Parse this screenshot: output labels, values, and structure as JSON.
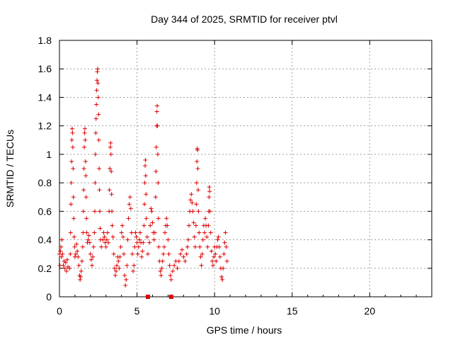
{
  "chart_data": {
    "type": "scatter",
    "title": "Day 344 of 2025, SRMTID for receiver ptvl",
    "xlabel": "GPS time / hours",
    "ylabel": "SRMTID / TECUs",
    "xlim": [
      0,
      24
    ],
    "ylim": [
      0,
      1.8
    ],
    "xticks": [
      0,
      5,
      10,
      15,
      20
    ],
    "xtick_labels": [
      "0",
      "5",
      "10",
      "15",
      "20"
    ],
    "yticks": [
      0,
      0.2,
      0.4,
      0.6,
      0.8,
      1,
      1.2,
      1.4,
      1.6,
      1.8
    ],
    "ytick_labels": [
      "0",
      "0.2",
      "0.4",
      "0.6",
      "0.8",
      "1",
      "1.2",
      "1.4",
      "1.6",
      "1.8"
    ],
    "grid": true,
    "marker": "plus",
    "color": "#e00000",
    "series": [
      {
        "name": "SRMTID",
        "points": [
          [
            0.0,
            0.3
          ],
          [
            0.03,
            0.22
          ],
          [
            0.06,
            0.32
          ],
          [
            0.1,
            0.35
          ],
          [
            0.13,
            0.28
          ],
          [
            0.16,
            0.4
          ],
          [
            0.2,
            0.3
          ],
          [
            0.25,
            0.22
          ],
          [
            0.3,
            0.25
          ],
          [
            0.35,
            0.2
          ],
          [
            0.4,
            0.24
          ],
          [
            0.45,
            0.18
          ],
          [
            0.5,
            0.26
          ],
          [
            0.55,
            0.21
          ],
          [
            0.65,
            0.2
          ],
          [
            0.7,
            0.3
          ],
          [
            0.72,
            0.45
          ],
          [
            0.74,
            0.65
          ],
          [
            0.76,
            0.8
          ],
          [
            0.78,
            0.95
          ],
          [
            0.8,
            1.1
          ],
          [
            0.82,
            1.18
          ],
          [
            0.84,
            1.15
          ],
          [
            0.86,
            1.05
          ],
          [
            0.88,
            0.9
          ],
          [
            0.9,
            0.7
          ],
          [
            0.92,
            0.55
          ],
          [
            0.95,
            0.42
          ],
          [
            0.98,
            0.35
          ],
          [
            1.0,
            0.28
          ],
          [
            1.05,
            0.3
          ],
          [
            1.1,
            0.37
          ],
          [
            1.15,
            0.32
          ],
          [
            1.2,
            0.28
          ],
          [
            1.25,
            0.22
          ],
          [
            1.3,
            0.15
          ],
          [
            1.33,
            0.12
          ],
          [
            1.36,
            0.14
          ],
          [
            1.4,
            0.18
          ],
          [
            1.45,
            0.25
          ],
          [
            1.5,
            0.35
          ],
          [
            1.52,
            0.45
          ],
          [
            1.54,
            0.6
          ],
          [
            1.56,
            0.75
          ],
          [
            1.58,
            0.9
          ],
          [
            1.6,
            1.05
          ],
          [
            1.62,
            1.15
          ],
          [
            1.64,
            1.18
          ],
          [
            1.66,
            1.1
          ],
          [
            1.68,
            0.95
          ],
          [
            1.7,
            0.85
          ],
          [
            1.72,
            0.7
          ],
          [
            1.74,
            0.55
          ],
          [
            1.76,
            0.45
          ],
          [
            1.8,
            0.38
          ],
          [
            1.85,
            0.4
          ],
          [
            1.9,
            0.43
          ],
          [
            1.95,
            0.38
          ],
          [
            2.0,
            0.3
          ],
          [
            2.05,
            0.26
          ],
          [
            2.1,
            0.22
          ],
          [
            2.15,
            0.28
          ],
          [
            2.2,
            0.35
          ],
          [
            2.25,
            0.45
          ],
          [
            2.28,
            0.6
          ],
          [
            2.3,
            0.8
          ],
          [
            2.32,
            1.0
          ],
          [
            2.34,
            1.15
          ],
          [
            2.36,
            1.25
          ],
          [
            2.38,
            1.35
          ],
          [
            2.4,
            1.45
          ],
          [
            2.42,
            1.52
          ],
          [
            2.44,
            1.58
          ],
          [
            2.46,
            1.6
          ],
          [
            2.48,
            1.5
          ],
          [
            2.5,
            1.4
          ],
          [
            2.52,
            1.28
          ],
          [
            2.54,
            1.1
          ],
          [
            2.56,
            0.9
          ],
          [
            2.58,
            0.75
          ],
          [
            2.6,
            0.6
          ],
          [
            2.62,
            0.48
          ],
          [
            2.65,
            0.4
          ],
          [
            2.7,
            0.35
          ],
          [
            2.8,
            0.4
          ],
          [
            2.85,
            0.45
          ],
          [
            2.9,
            0.42
          ],
          [
            2.95,
            0.38
          ],
          [
            3.0,
            0.35
          ],
          [
            3.05,
            0.4
          ],
          [
            3.1,
            0.45
          ],
          [
            3.15,
            0.38
          ],
          [
            3.2,
            0.6
          ],
          [
            3.22,
            0.75
          ],
          [
            3.25,
            0.9
          ],
          [
            3.28,
            1.05
          ],
          [
            3.3,
            1.08
          ],
          [
            3.32,
            1.0
          ],
          [
            3.34,
            0.88
          ],
          [
            3.36,
            0.72
          ],
          [
            3.38,
            0.6
          ],
          [
            3.4,
            0.5
          ],
          [
            3.45,
            0.42
          ],
          [
            3.5,
            0.3
          ],
          [
            3.55,
            0.2
          ],
          [
            3.6,
            0.15
          ],
          [
            3.65,
            0.18
          ],
          [
            3.7,
            0.22
          ],
          [
            3.75,
            0.28
          ],
          [
            3.8,
            0.25
          ],
          [
            3.85,
            0.2
          ],
          [
            3.9,
            0.28
          ],
          [
            3.95,
            0.35
          ],
          [
            4.0,
            0.45
          ],
          [
            4.05,
            0.5
          ],
          [
            4.1,
            0.42
          ],
          [
            4.15,
            0.3
          ],
          [
            4.2,
            0.15
          ],
          [
            4.25,
            0.08
          ],
          [
            4.3,
            0.12
          ],
          [
            4.35,
            0.22
          ],
          [
            4.4,
            0.4
          ],
          [
            4.45,
            0.55
          ],
          [
            4.5,
            0.65
          ],
          [
            4.55,
            0.7
          ],
          [
            4.6,
            0.62
          ],
          [
            4.65,
            0.45
          ],
          [
            4.7,
            0.3
          ],
          [
            4.75,
            0.18
          ],
          [
            4.8,
            0.22
          ],
          [
            4.85,
            0.35
          ],
          [
            4.9,
            0.45
          ],
          [
            4.95,
            0.42
          ],
          [
            5.0,
            0.38
          ],
          [
            5.05,
            0.3
          ],
          [
            5.1,
            0.35
          ],
          [
            5.15,
            0.4
          ],
          [
            5.2,
            0.45
          ],
          [
            5.25,
            0.38
          ],
          [
            5.3,
            0.28
          ],
          [
            5.35,
            0.32
          ],
          [
            5.4,
            0.38
          ],
          [
            5.45,
            0.5
          ],
          [
            5.48,
            0.65
          ],
          [
            5.5,
            0.8
          ],
          [
            5.52,
            0.92
          ],
          [
            5.54,
            0.96
          ],
          [
            5.56,
            0.85
          ],
          [
            5.58,
            0.72
          ],
          [
            5.6,
            0.55
          ],
          [
            5.65,
            0.42
          ],
          [
            5.7,
            0.3
          ],
          [
            5.8,
            0.38
          ],
          [
            5.85,
            0.5
          ],
          [
            5.9,
            0.62
          ],
          [
            5.95,
            0.6
          ],
          [
            6.0,
            0.52
          ],
          [
            6.05,
            0.45
          ],
          [
            6.1,
            0.4
          ],
          [
            6.15,
            0.45
          ],
          [
            6.2,
            0.7
          ],
          [
            6.22,
            0.88
          ],
          [
            6.24,
            1.05
          ],
          [
            6.26,
            1.2
          ],
          [
            6.28,
            1.3
          ],
          [
            6.3,
            1.34
          ],
          [
            6.32,
            1.2
          ],
          [
            6.34,
            1.0
          ],
          [
            6.36,
            0.8
          ],
          [
            6.38,
            0.55
          ],
          [
            6.4,
            0.35
          ],
          [
            6.45,
            0.25
          ],
          [
            6.5,
            0.18
          ],
          [
            6.55,
            0.15
          ],
          [
            6.6,
            0.2
          ],
          [
            6.65,
            0.25
          ],
          [
            6.7,
            0.3
          ],
          [
            6.75,
            0.35
          ],
          [
            6.8,
            0.45
          ],
          [
            6.85,
            0.5
          ],
          [
            6.9,
            0.55
          ],
          [
            6.95,
            0.5
          ],
          [
            7.0,
            0.4
          ],
          [
            7.05,
            0.3
          ],
          [
            7.1,
            0.22
          ],
          [
            7.15,
            0.15
          ],
          [
            7.2,
            0.12
          ],
          [
            7.3,
            0.18
          ],
          [
            7.4,
            0.22
          ],
          [
            7.5,
            0.25
          ],
          [
            7.6,
            0.2
          ],
          [
            7.7,
            0.25
          ],
          [
            7.8,
            0.3
          ],
          [
            7.9,
            0.33
          ],
          [
            8.0,
            0.28
          ],
          [
            8.1,
            0.25
          ],
          [
            8.2,
            0.3
          ],
          [
            8.25,
            0.35
          ],
          [
            8.3,
            0.4
          ],
          [
            8.35,
            0.5
          ],
          [
            8.4,
            0.6
          ],
          [
            8.45,
            0.68
          ],
          [
            8.5,
            0.72
          ],
          [
            8.55,
            0.66
          ],
          [
            8.6,
            0.6
          ],
          [
            8.65,
            0.52
          ],
          [
            8.7,
            0.42
          ],
          [
            8.75,
            0.35
          ],
          [
            8.8,
            0.5
          ],
          [
            8.82,
            0.65
          ],
          [
            8.84,
            0.8
          ],
          [
            8.86,
            0.95
          ],
          [
            8.88,
            1.04
          ],
          [
            8.9,
            1.03
          ],
          [
            8.92,
            0.9
          ],
          [
            8.94,
            0.75
          ],
          [
            8.96,
            0.6
          ],
          [
            9.0,
            0.45
          ],
          [
            9.05,
            0.35
          ],
          [
            9.1,
            0.28
          ],
          [
            9.15,
            0.22
          ],
          [
            9.2,
            0.3
          ],
          [
            9.25,
            0.4
          ],
          [
            9.3,
            0.5
          ],
          [
            9.35,
            0.45
          ],
          [
            9.4,
            0.55
          ],
          [
            9.45,
            0.5
          ],
          [
            9.5,
            0.42
          ],
          [
            9.55,
            0.35
          ],
          [
            9.6,
            0.5
          ],
          [
            9.62,
            0.6
          ],
          [
            9.64,
            0.7
          ],
          [
            9.66,
            0.77
          ],
          [
            9.68,
            0.74
          ],
          [
            9.7,
            0.6
          ],
          [
            9.75,
            0.45
          ],
          [
            9.8,
            0.32
          ],
          [
            9.85,
            0.25
          ],
          [
            9.9,
            0.22
          ],
          [
            9.95,
            0.28
          ],
          [
            10.0,
            0.35
          ],
          [
            10.05,
            0.3
          ],
          [
            10.1,
            0.25
          ],
          [
            10.15,
            0.35
          ],
          [
            10.2,
            0.4
          ],
          [
            10.25,
            0.42
          ],
          [
            10.3,
            0.35
          ],
          [
            10.35,
            0.28
          ],
          [
            10.4,
            0.2
          ],
          [
            10.45,
            0.14
          ],
          [
            10.5,
            0.12
          ],
          [
            10.55,
            0.2
          ],
          [
            10.6,
            0.3
          ],
          [
            10.65,
            0.38
          ],
          [
            10.7,
            0.45
          ],
          [
            10.75,
            0.35
          ],
          [
            10.8,
            0.25
          ]
        ],
        "outliers": [
          [
            5.7,
            0.0
          ],
          [
            7.2,
            0.0
          ]
        ]
      }
    ]
  }
}
